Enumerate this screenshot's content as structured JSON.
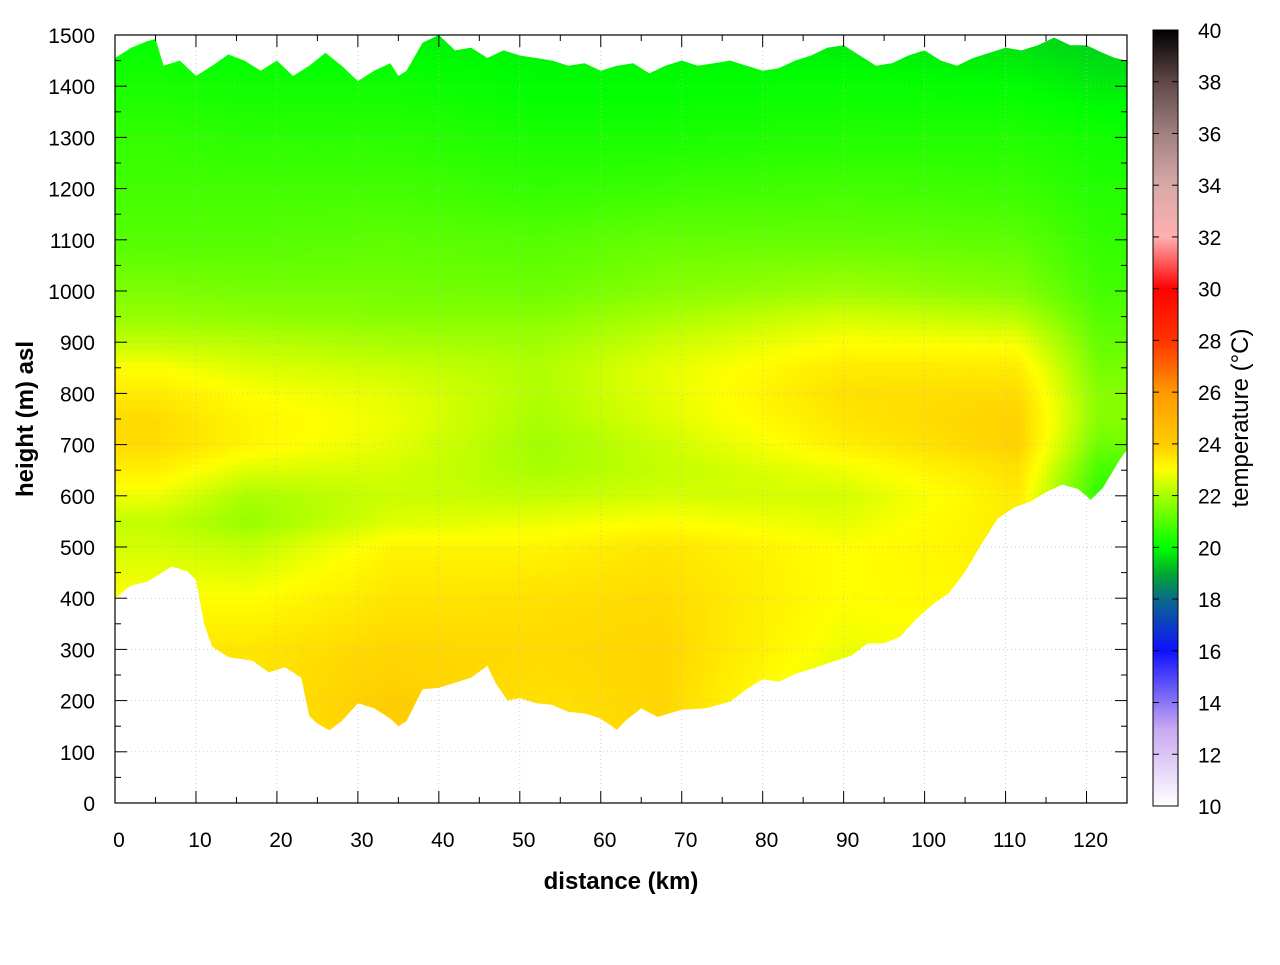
{
  "chart_data": {
    "type": "heatmap",
    "title": "",
    "xlabel": "distance (km)",
    "ylabel": "height (m) asl",
    "xlim": [
      0,
      125
    ],
    "ylim": [
      0,
      1500
    ],
    "x_ticks": [
      0,
      10,
      20,
      30,
      40,
      50,
      60,
      70,
      80,
      90,
      100,
      110,
      120
    ],
    "x_tick_labels": [
      "0",
      "10",
      "20",
      "30",
      "40",
      "50",
      "60",
      "70",
      "80",
      "90",
      "100",
      "110",
      "120"
    ],
    "y_ticks": [
      0,
      100,
      200,
      300,
      400,
      500,
      600,
      700,
      800,
      900,
      1000,
      1100,
      1200,
      1300,
      1400,
      1500
    ],
    "y_tick_labels": [
      "0",
      "100",
      "200",
      "300",
      "400",
      "500",
      "600",
      "700",
      "800",
      "900",
      "1000",
      "1100",
      "1200",
      "1300",
      "1400",
      "1500"
    ],
    "grid": true,
    "colorbar": {
      "label": "temperature (°C)",
      "range": [
        10,
        40
      ],
      "ticks": [
        10,
        12,
        14,
        16,
        18,
        20,
        22,
        24,
        26,
        28,
        30,
        32,
        34,
        36,
        38,
        40
      ],
      "tick_labels": [
        "10",
        "12",
        "14",
        "16",
        "18",
        "20",
        "22",
        "24",
        "26",
        "28",
        "30",
        "32",
        "34",
        "36",
        "38",
        "40"
      ],
      "colormap": [
        {
          "value": 10,
          "color": "#ffffff"
        },
        {
          "value": 13,
          "color": "#c8a8f0"
        },
        {
          "value": 16,
          "color": "#1010ff"
        },
        {
          "value": 18,
          "color": "#0a6a8a"
        },
        {
          "value": 19,
          "color": "#00aa30"
        },
        {
          "value": 20,
          "color": "#00ff00"
        },
        {
          "value": 22,
          "color": "#a8ff00"
        },
        {
          "value": 23,
          "color": "#ffff00"
        },
        {
          "value": 24,
          "color": "#ffcc00"
        },
        {
          "value": 26,
          "color": "#ff9900"
        },
        {
          "value": 28,
          "color": "#ff3300"
        },
        {
          "value": 30,
          "color": "#ff0000"
        },
        {
          "value": 32,
          "color": "#ffb0b0"
        },
        {
          "value": 34,
          "color": "#d8a8a8"
        },
        {
          "value": 36,
          "color": "#a08080"
        },
        {
          "value": 38,
          "color": "#604848"
        },
        {
          "value": 40,
          "color": "#000000"
        }
      ]
    },
    "terrain_height": {
      "x": [
        0,
        2,
        4,
        7,
        9,
        10,
        11,
        12,
        14,
        17,
        19,
        21,
        23,
        24,
        25,
        26.5,
        28,
        30,
        32,
        34,
        35,
        36,
        38,
        40,
        42,
        44,
        46,
        47,
        48.5,
        50,
        52,
        54,
        56,
        58,
        60,
        62,
        63,
        65,
        67,
        70,
        73,
        76,
        78,
        80,
        82,
        84,
        86,
        89,
        91,
        93,
        95,
        97,
        99,
        101,
        103,
        105,
        107,
        109,
        111,
        113,
        115,
        117,
        119,
        120.5,
        122,
        124,
        125
      ],
      "y": [
        400,
        425,
        432,
        462,
        452,
        435,
        350,
        305,
        285,
        278,
        255,
        265,
        245,
        170,
        155,
        142,
        160,
        195,
        185,
        165,
        150,
        160,
        222,
        225,
        235,
        245,
        268,
        235,
        200,
        205,
        195,
        192,
        178,
        175,
        165,
        143,
        160,
        185,
        168,
        182,
        185,
        198,
        222,
        242,
        237,
        252,
        262,
        278,
        288,
        312,
        312,
        325,
        360,
        388,
        410,
        452,
        505,
        555,
        577,
        588,
        607,
        622,
        613,
        592,
        615,
        668,
        690
      ]
    },
    "top_boundary_height": {
      "x": [
        0,
        2,
        4,
        5,
        6,
        8,
        10,
        12,
        14,
        16,
        18,
        20,
        22,
        24,
        26,
        28,
        30,
        32,
        34,
        35,
        36,
        38,
        40,
        42,
        44,
        46,
        48,
        50,
        52,
        54,
        56,
        58,
        60,
        62,
        64,
        66,
        68,
        70,
        72,
        74,
        76,
        78,
        80,
        82,
        84,
        86,
        88,
        90,
        92,
        94,
        96,
        98,
        100,
        102,
        104,
        106,
        108,
        110,
        112,
        114,
        116,
        118,
        120,
        122,
        123.5,
        125
      ],
      "y": [
        1455,
        1475,
        1488,
        1492,
        1440,
        1450,
        1420,
        1440,
        1462,
        1450,
        1430,
        1450,
        1420,
        1440,
        1465,
        1440,
        1410,
        1430,
        1445,
        1420,
        1430,
        1485,
        1500,
        1470,
        1475,
        1455,
        1470,
        1460,
        1455,
        1450,
        1440,
        1445,
        1430,
        1440,
        1445,
        1425,
        1440,
        1450,
        1440,
        1445,
        1450,
        1440,
        1430,
        1435,
        1450,
        1460,
        1475,
        1480,
        1460,
        1440,
        1445,
        1460,
        1470,
        1450,
        1440,
        1455,
        1465,
        1475,
        1470,
        1480,
        1495,
        1480,
        1480,
        1465,
        1455,
        1450
      ]
    },
    "temperature_profile": {
      "heights": [
        0,
        200,
        300,
        400,
        500,
        550,
        600,
        650,
        700,
        750,
        800,
        850,
        900,
        950,
        1000,
        1100,
        1200,
        1300,
        1400,
        1500
      ],
      "zones": [
        {
          "x": [
            0,
            10
          ],
          "temps": [
            23.3,
            23.5,
            23.5,
            23.0,
            22.5,
            22.3,
            22.8,
            23.3,
            23.7,
            23.7,
            23.4,
            23.0,
            22.3,
            21.8,
            21.5,
            21.0,
            20.8,
            20.6,
            20.3,
            20.0
          ]
        },
        {
          "x": [
            10,
            23
          ],
          "temps": [
            23.3,
            23.5,
            23.5,
            23.0,
            22.3,
            21.8,
            22.0,
            22.6,
            23.2,
            23.2,
            23.0,
            22.6,
            22.2,
            21.7,
            21.4,
            21.0,
            20.8,
            20.5,
            20.2,
            19.9
          ]
        },
        {
          "x": [
            23,
            45
          ],
          "temps": [
            24.0,
            24.0,
            23.8,
            23.5,
            23.2,
            22.6,
            22.4,
            22.5,
            22.7,
            22.8,
            22.7,
            22.4,
            22.0,
            21.6,
            21.4,
            21.1,
            20.8,
            20.5,
            20.2,
            19.8
          ]
        },
        {
          "x": [
            45,
            60
          ],
          "temps": [
            23.7,
            23.6,
            23.7,
            23.6,
            23.2,
            22.8,
            22.3,
            22.0,
            21.9,
            22.0,
            22.1,
            22.1,
            21.9,
            21.6,
            21.3,
            21.0,
            20.6,
            20.3,
            20.0,
            19.8
          ]
        },
        {
          "x": [
            60,
            75
          ],
          "temps": [
            23.7,
            23.8,
            23.8,
            23.7,
            23.5,
            23.0,
            22.5,
            22.3,
            22.4,
            22.6,
            22.7,
            22.7,
            22.4,
            22.0,
            21.6,
            21.2,
            20.7,
            20.3,
            20.0,
            19.8
          ]
        },
        {
          "x": [
            75,
            105
          ],
          "temps": [
            22.0,
            22.4,
            22.8,
            23.0,
            23.0,
            22.7,
            22.5,
            22.8,
            23.3,
            23.5,
            23.6,
            23.4,
            23.0,
            22.5,
            21.9,
            21.2,
            20.8,
            20.4,
            20.1,
            19.7
          ]
        },
        {
          "x": [
            105,
            118
          ],
          "temps": [
            23.0,
            23.0,
            23.0,
            23.2,
            23.3,
            23.4,
            23.4,
            23.6,
            23.9,
            23.9,
            23.7,
            23.4,
            22.9,
            22.2,
            21.6,
            21.1,
            20.7,
            20.4,
            20.0,
            19.6
          ]
        },
        {
          "x": [
            118,
            125
          ],
          "temps": [
            21.5,
            21.5,
            21.5,
            21.5,
            21.5,
            21.2,
            20.5,
            20.8,
            21.3,
            21.6,
            21.6,
            21.4,
            21.2,
            21.0,
            20.8,
            20.6,
            20.4,
            20.2,
            19.8,
            19.4
          ]
        }
      ]
    }
  }
}
